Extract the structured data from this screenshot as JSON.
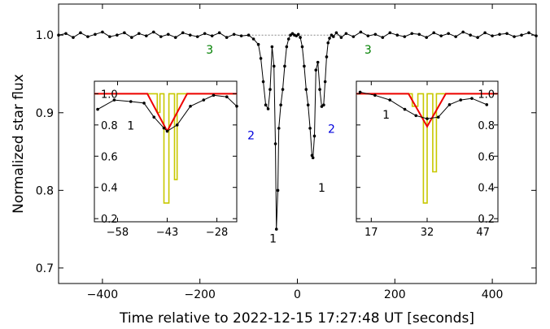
{
  "chart_data": {
    "type": "line",
    "xlabel": "Time relative to 2022-12-15 17:27:48 UT [seconds]",
    "ylabel": "Normalized star flux",
    "xlim": [
      -490,
      490
    ],
    "ylim": [
      0.68,
      1.04
    ],
    "xticks": [
      -400,
      -200,
      0,
      200,
      400
    ],
    "xtick_labels": [
      "−400",
      "−200",
      "0",
      "200",
      "400"
    ],
    "yticks": [
      0.7,
      0.8,
      0.9,
      1.0
    ],
    "ytick_labels": [
      "0.7",
      "0.8",
      "0.9",
      "1.0"
    ],
    "reference_level": 1.0,
    "series": [
      {
        "color": "#000000",
        "x": [
          -490,
          -475,
          -460,
          -445,
          -430,
          -415,
          -400,
          -385,
          -370,
          -355,
          -340,
          -325,
          -310,
          -295,
          -280,
          -265,
          -250,
          -235,
          -220,
          -205,
          -190,
          -175,
          -160,
          -145,
          -130,
          -115,
          -100,
          -90,
          -80,
          -75,
          -70,
          -65,
          -60,
          -56,
          -52,
          -48,
          -45,
          -43,
          -40,
          -38,
          -34,
          -30,
          -26,
          -22,
          -18,
          -14,
          -10,
          -6,
          -2,
          2,
          6,
          10,
          14,
          18,
          22,
          26,
          30,
          32,
          35,
          38,
          42,
          46,
          50,
          54,
          57,
          60,
          63,
          66,
          70,
          74,
          80,
          90,
          100,
          115,
          130,
          145,
          160,
          175,
          190,
          205,
          220,
          235,
          250,
          265,
          280,
          295,
          310,
          325,
          340,
          355,
          370,
          385,
          400,
          415,
          430,
          445,
          460,
          475,
          490
        ],
        "y": [
          1.0,
          1.002,
          0.997,
          1.003,
          0.998,
          1.001,
          1.004,
          0.998,
          1.0,
          1.003,
          0.997,
          1.002,
          0.999,
          1.004,
          0.998,
          1.001,
          0.997,
          1.003,
          1.0,
          0.998,
          1.002,
          0.999,
          1.003,
          0.997,
          1.001,
          0.999,
          1.0,
          0.995,
          0.988,
          0.97,
          0.94,
          0.91,
          0.905,
          0.93,
          0.985,
          0.96,
          0.86,
          0.75,
          0.8,
          0.88,
          0.91,
          0.93,
          0.96,
          0.985,
          0.995,
          1.0,
          1.002,
          1.0,
          0.999,
          1.001,
          0.997,
          0.985,
          0.96,
          0.93,
          0.91,
          0.88,
          0.845,
          0.842,
          0.87,
          0.955,
          0.965,
          0.93,
          0.908,
          0.91,
          0.94,
          0.972,
          0.99,
          0.996,
          1.0,
          0.998,
          1.003,
          0.997,
          1.002,
          0.998,
          1.004,
          0.999,
          1.001,
          0.997,
          1.003,
          1.0,
          0.998,
          1.002,
          1.001,
          0.997,
          1.003,
          0.999,
          1.002,
          0.998,
          1.004,
          1.0,
          0.997,
          1.003,
          0.999,
          1.001,
          1.002,
          0.998,
          1.0,
          1.003,
          0.999
        ]
      }
    ],
    "annotations": [
      {
        "text": "1",
        "x": -50,
        "y": 0.733,
        "color": "#000000"
      },
      {
        "text": "1",
        "x": 50,
        "y": 0.798,
        "color": "#000000"
      },
      {
        "text": "2",
        "x": -95,
        "y": 0.866,
        "color": "#0000dd"
      },
      {
        "text": "2",
        "x": 70,
        "y": 0.874,
        "color": "#0000dd"
      },
      {
        "text": "3",
        "x": -180,
        "y": 0.976,
        "color": "#008000"
      },
      {
        "text": "3",
        "x": 145,
        "y": 0.976,
        "color": "#008000"
      }
    ],
    "insets": [
      {
        "position": "left",
        "xlim": [
          -65,
          -22
        ],
        "ylim": [
          0.18,
          1.08
        ],
        "xticks": [
          -58,
          -43,
          -28
        ],
        "xtick_labels": [
          "−58",
          "−43",
          "−28"
        ],
        "yticks": [
          0.2,
          0.4,
          0.6,
          0.8,
          1.0
        ],
        "ytick_labels": [
          "0.2",
          "0.4",
          "0.6",
          "0.8",
          "1.0"
        ],
        "ytick_side": "left",
        "data": {
          "x": [
            -64,
            -59,
            -54,
            -50,
            -47,
            -44,
            -43,
            -40,
            -36,
            -32,
            -29,
            -25,
            -22
          ],
          "y": [
            0.9,
            0.96,
            0.95,
            0.94,
            0.85,
            0.78,
            0.76,
            0.8,
            0.92,
            0.96,
            0.99,
            0.98,
            0.92
          ]
        },
        "model_red": {
          "x": [
            -65,
            -49,
            -43,
            -37,
            -22
          ],
          "y": [
            1.0,
            1.0,
            0.76,
            1.0,
            1.0
          ]
        },
        "model_yellow": {
          "x": [
            -65,
            -46,
            -46,
            -45.2,
            -45.2,
            -44,
            -44,
            -42.5,
            -42.5,
            -40.8,
            -40.8,
            -40,
            -40,
            -22
          ],
          "y": [
            1.0,
            1.0,
            0.88,
            0.88,
            1.0,
            1.0,
            0.3,
            0.3,
            1.0,
            1.0,
            0.45,
            0.45,
            1.0,
            1.0
          ]
        },
        "label": {
          "text": "1",
          "x": -54,
          "y": 0.77
        }
      },
      {
        "position": "right",
        "xlim": [
          13,
          51
        ],
        "ylim": [
          0.18,
          1.08
        ],
        "xticks": [
          17,
          32,
          47
        ],
        "xtick_labels": [
          "17",
          "32",
          "47"
        ],
        "yticks": [
          0.2,
          0.4,
          0.6,
          0.8,
          1.0
        ],
        "ytick_labels": [
          "0.2",
          "0.4",
          "0.6",
          "0.8",
          "1.0"
        ],
        "ytick_side": "right",
        "data": {
          "x": [
            14,
            18,
            22,
            26,
            29,
            32,
            35,
            38,
            41,
            44,
            48
          ],
          "y": [
            1.01,
            0.99,
            0.96,
            0.9,
            0.86,
            0.84,
            0.85,
            0.93,
            0.96,
            0.97,
            0.93
          ]
        },
        "model_red": {
          "x": [
            13,
            27,
            32,
            37,
            51
          ],
          "y": [
            1.0,
            1.0,
            0.79,
            1.0,
            1.0
          ]
        },
        "model_yellow": {
          "x": [
            13,
            28,
            28,
            29.5,
            29.5,
            31,
            31,
            32,
            32,
            33.5,
            33.5,
            34.5,
            34.5,
            51
          ],
          "y": [
            1.0,
            1.0,
            0.92,
            0.92,
            1.0,
            1.0,
            0.3,
            0.3,
            1.0,
            1.0,
            0.5,
            0.5,
            1.0,
            1.0
          ]
        },
        "label": {
          "text": "1",
          "x": 21,
          "y": 0.84
        }
      }
    ]
  }
}
